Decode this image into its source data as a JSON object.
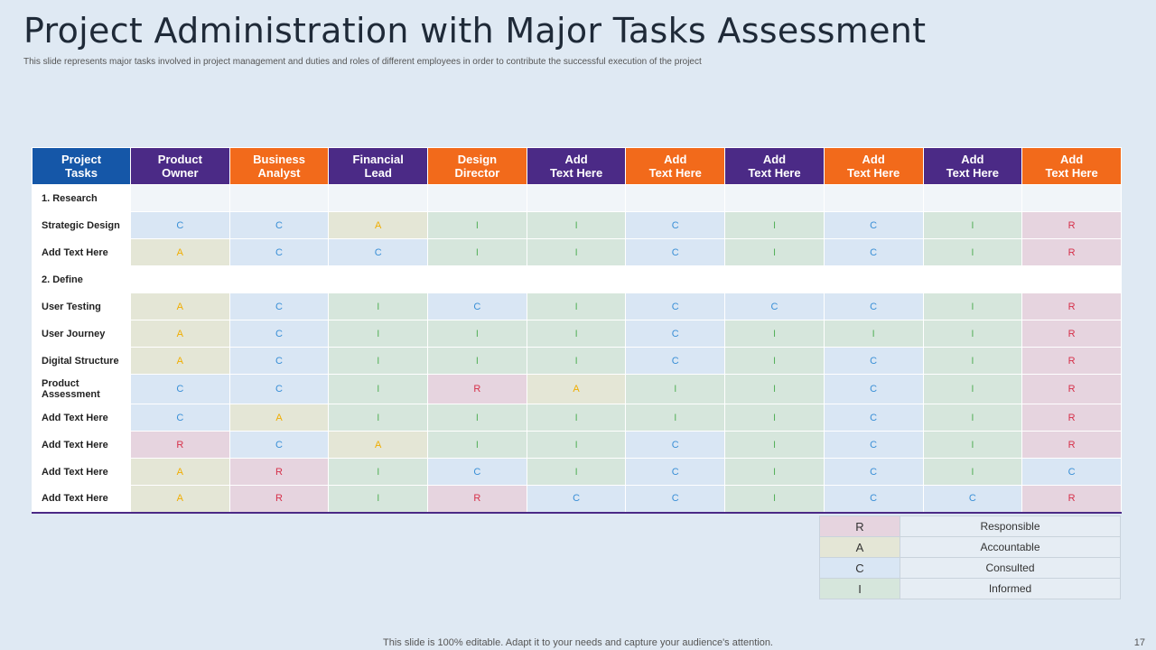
{
  "title": "Project Administration with Major Tasks Assessment",
  "subtitle": "This slide represents major tasks involved in project management  and duties and roles of different employees in order to contribute the successful execution of the project",
  "colors": {
    "blue": "#1557a8",
    "purple": "#4b2a86",
    "orange": "#f26a1b"
  },
  "headers": [
    {
      "line1": "Project",
      "line2": "Tasks",
      "color": "blue"
    },
    {
      "line1": "Product",
      "line2": "Owner",
      "color": "purple"
    },
    {
      "line1": "Business",
      "line2": "Analyst",
      "color": "orange"
    },
    {
      "line1": "Financial",
      "line2": "Lead",
      "color": "purple"
    },
    {
      "line1": "Design",
      "line2": "Director",
      "color": "orange"
    },
    {
      "line1": "Add",
      "line2": "Text Here",
      "color": "purple"
    },
    {
      "line1": "Add",
      "line2": "Text Here",
      "color": "orange"
    },
    {
      "line1": "Add",
      "line2": "Text Here",
      "color": "purple"
    },
    {
      "line1": "Add",
      "line2": "Text Here",
      "color": "orange"
    },
    {
      "line1": "Add",
      "line2": "Text Here",
      "color": "purple"
    },
    {
      "line1": "Add",
      "line2": "Text Here",
      "color": "orange"
    }
  ],
  "rows": [
    {
      "task": "1. Research",
      "section": true,
      "values": [
        "",
        "",
        "",
        "",
        "",
        "",
        "",
        "",
        "",
        ""
      ]
    },
    {
      "task": "Strategic Design",
      "values": [
        "C",
        "C",
        "A",
        "I",
        "I",
        "C",
        "I",
        "C",
        "I",
        "R"
      ]
    },
    {
      "task": "Add Text Here",
      "values": [
        "A",
        "C",
        "C",
        "I",
        "I",
        "C",
        "I",
        "C",
        "I",
        "R"
      ]
    },
    {
      "task": "2. Define",
      "section": true,
      "values": [
        "",
        "",
        "",
        "",
        "",
        "",
        "",
        "",
        "",
        ""
      ]
    },
    {
      "task": "User Testing",
      "values": [
        "A",
        "C",
        "I",
        "C",
        "I",
        "C",
        "C",
        "C",
        "I",
        "R"
      ]
    },
    {
      "task": "User Journey",
      "values": [
        "A",
        "C",
        "I",
        "I",
        "I",
        "C",
        "I",
        "I",
        "I",
        "R"
      ]
    },
    {
      "task": "Digital Structure",
      "values": [
        "A",
        "C",
        "I",
        "I",
        "I",
        "C",
        "I",
        "C",
        "I",
        "R"
      ]
    },
    {
      "task": "Product Assessment",
      "values": [
        "C",
        "C",
        "I",
        "R",
        "A",
        "I",
        "I",
        "C",
        "I",
        "R"
      ]
    },
    {
      "task": "Add Text Here",
      "values": [
        "C",
        "A",
        "I",
        "I",
        "I",
        "I",
        "I",
        "C",
        "I",
        "R"
      ]
    },
    {
      "task": "Add Text Here",
      "values": [
        "R",
        "C",
        "A",
        "I",
        "I",
        "C",
        "I",
        "C",
        "I",
        "R"
      ]
    },
    {
      "task": "Add Text Here",
      "values": [
        "A",
        "R",
        "I",
        "C",
        "I",
        "C",
        "I",
        "C",
        "I",
        "C"
      ]
    },
    {
      "task": "Add Text Here",
      "values": [
        "A",
        "R",
        "I",
        "R",
        "C",
        "C",
        "I",
        "C",
        "C",
        "R"
      ]
    }
  ],
  "legend": [
    {
      "key": "R",
      "label": "Responsible"
    },
    {
      "key": "A",
      "label": "Accountable"
    },
    {
      "key": "C",
      "label": "Consulted"
    },
    {
      "key": "I",
      "label": "Informed"
    }
  ],
  "footer": "This slide is 100% editable. Adapt it to your needs and capture your audience's attention.",
  "page_number": "17"
}
